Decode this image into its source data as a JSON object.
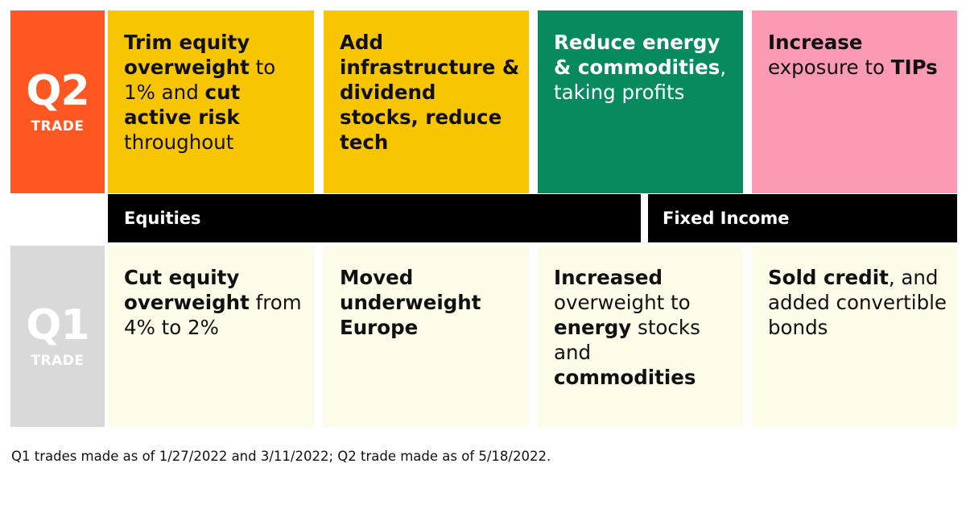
{
  "q2": {
    "label_big": "Q2",
    "label_small": "TRADE",
    "cards": [
      [
        {
          "text": "Trim equity overweight",
          "bold": true
        },
        {
          "text": " to 1% and ",
          "bold": false
        },
        {
          "text": "cut active risk",
          "bold": true
        },
        {
          "text": " throughout",
          "bold": false
        }
      ],
      [
        {
          "text": "Add infrastructure & dividend stocks, reduce tech",
          "bold": true
        }
      ],
      [
        {
          "text": "Reduce energy & commodities",
          "bold": true
        },
        {
          "text": ", taking profits",
          "bold": false
        }
      ],
      [
        {
          "text": "Increase",
          "bold": true
        },
        {
          "text": " exposure to ",
          "bold": false
        },
        {
          "text": "TIPs",
          "bold": true
        }
      ]
    ]
  },
  "categories": {
    "equities": "Equities",
    "fixed_income": "Fixed Income"
  },
  "q1": {
    "label_big": "Q1",
    "label_small": "TRADE",
    "cards": [
      [
        {
          "text": "Cut equity overweight",
          "bold": true
        },
        {
          "text": " from 4% to 2%",
          "bold": false
        }
      ],
      [
        {
          "text": "Moved underweight Europe",
          "bold": true
        }
      ],
      [
        {
          "text": "Increased",
          "bold": true
        },
        {
          "text": " overweight to ",
          "bold": false
        },
        {
          "text": "energy",
          "bold": true
        },
        {
          "text": " stocks and ",
          "bold": false
        },
        {
          "text": "commodities",
          "bold": true
        }
      ],
      [
        {
          "text": "Sold credit",
          "bold": true
        },
        {
          "text": ", and added convertible bonds",
          "bold": false
        }
      ]
    ]
  },
  "footnote": "Q1 trades made as of 1/27/2022 and 3/11/2022; Q2 trade made as of 5/18/2022.",
  "colors": {
    "q2_label": "#ff5722",
    "q1_label": "#d9d9d9",
    "yellow": "#f7c600",
    "green": "#078a5d",
    "pink": "#fd9ab3",
    "cream": "#fcfde9",
    "bar": "#000000"
  }
}
